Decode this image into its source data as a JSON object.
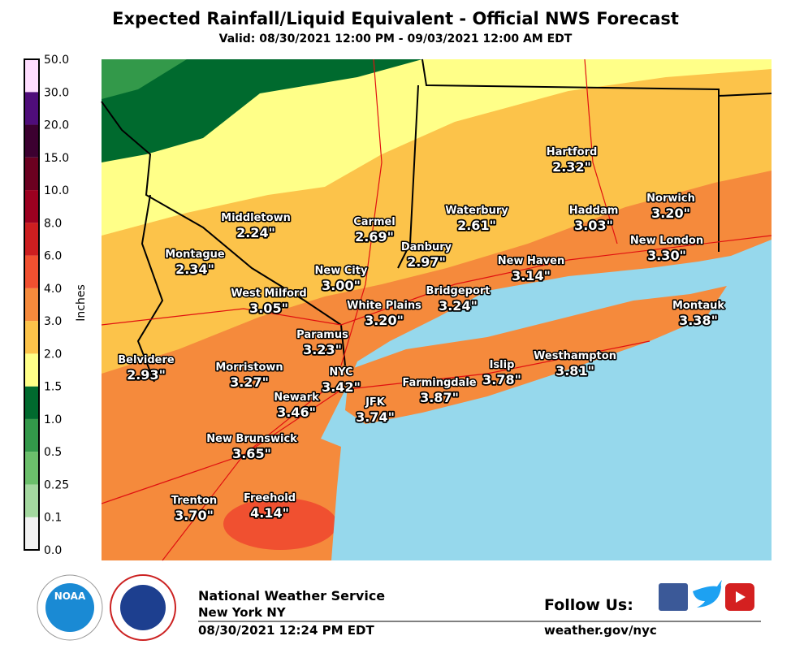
{
  "header": {
    "title": "Expected Rainfall/Liquid Equivalent - Official NWS Forecast",
    "subtitle": "Valid: 08/30/2021 12:00 PM - 09/03/2021 12:00 AM EDT"
  },
  "legend": {
    "unit": "Inches",
    "labels": [
      "0.0",
      "0.1",
      "0.25",
      "0.5",
      "1.0",
      "1.5",
      "2.0",
      "3.0",
      "4.0",
      "6.0",
      "8.0",
      "10.0",
      "15.0",
      "20.0",
      "30.0",
      "50.0"
    ],
    "colors": [
      "#f2f2f2",
      "#a4d8a0",
      "#6bbf6b",
      "#33994a",
      "#006a2e",
      "#ffff88",
      "#fcc34a",
      "#f58a3c",
      "#f05030",
      "#cc1e20",
      "#9c0020",
      "#6b0020",
      "#3c0030",
      "#4f0d7a",
      "#ffddff"
    ]
  },
  "cities": [
    {
      "name": "Hartford",
      "value": "2.32\""
    },
    {
      "name": "Waterbury",
      "value": "2.61\""
    },
    {
      "name": "Haddam",
      "value": "3.03\""
    },
    {
      "name": "Norwich",
      "value": "3.20\""
    },
    {
      "name": "Middletown",
      "value": "2.24\""
    },
    {
      "name": "Carmel",
      "value": "2.69\""
    },
    {
      "name": "Danbury",
      "value": "2.97\""
    },
    {
      "name": "New London",
      "value": "3.30\""
    },
    {
      "name": "New Haven",
      "value": "3.14\""
    },
    {
      "name": "Montague",
      "value": "2.34\""
    },
    {
      "name": "New City",
      "value": "3.00\""
    },
    {
      "name": "West Milford",
      "value": "3.05\""
    },
    {
      "name": "Bridgeport",
      "value": "3.24\""
    },
    {
      "name": "White Plains",
      "value": "3.20\""
    },
    {
      "name": "Montauk",
      "value": "3.38\""
    },
    {
      "name": "Paramus",
      "value": "3.23\""
    },
    {
      "name": "Belvidere",
      "value": "2.93\""
    },
    {
      "name": "Morristown",
      "value": "3.27\""
    },
    {
      "name": "NYC",
      "value": "3.42\""
    },
    {
      "name": "Islip",
      "value": "3.78\""
    },
    {
      "name": "Westhampton",
      "value": "3.81\""
    },
    {
      "name": "Farmingdale",
      "value": "3.87\""
    },
    {
      "name": "Newark",
      "value": "3.46\""
    },
    {
      "name": "JFK",
      "value": "3.74\""
    },
    {
      "name": "New Brunswick",
      "value": "3.65\""
    },
    {
      "name": "Trenton",
      "value": "3.70\""
    },
    {
      "name": "Freehold",
      "value": "4.14\""
    }
  ],
  "footer": {
    "noaa": "NOAA",
    "office": "National Weather Service",
    "location": "New York NY",
    "issued": "08/30/2021 12:24 PM EDT",
    "follow": "Follow Us:",
    "url": "weather.gov/nyc"
  }
}
